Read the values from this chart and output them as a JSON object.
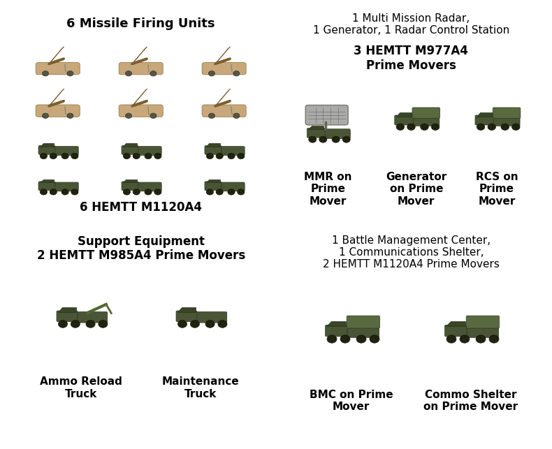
{
  "background_color": "#ffffff",
  "border_color": "#333333",
  "fig_width": 7.9,
  "fig_height": 6.43,
  "dpi": 100,
  "quadrants": [
    {
      "id": "top_left",
      "title": "6 Missile Firing Units",
      "title_bold": true,
      "title_fontsize": 13,
      "subtitle": "6 HEMTT M1120A4",
      "subtitle_fontsize": 12,
      "subtitle_bold": true
    },
    {
      "id": "top_right",
      "title": "1 Multi Mission Radar,\n1 Generator, 1 Radar Control Station",
      "title_bold": false,
      "title_fontsize": 11,
      "subtitle": "3 HEMTT M977A4\nPrime Movers",
      "subtitle_fontsize": 12,
      "subtitle_bold": true,
      "item_labels": [
        "MMR on\nPrime\nMover",
        "Generator\non Prime\nMover",
        "RCS on\nPrime\nMover"
      ],
      "item_fontsize": 11
    },
    {
      "id": "bottom_left",
      "title": "Support Equipment\n2 HEMTT M985A4 Prime Movers",
      "title_bold": true,
      "title_fontsize": 12,
      "item_labels": [
        "Ammo Reload\nTruck",
        "Maintenance\nTruck"
      ],
      "item_fontsize": 11
    },
    {
      "id": "bottom_right",
      "title": "1 Battle Management Center,\n1 Communications Shelter,\n2 HEMTT M1120A4 Prime Movers",
      "title_bold": false,
      "title_fontsize": 11,
      "item_labels": [
        "BMC on Prime\nMover",
        "Commo Shelter\non Prime Mover"
      ],
      "item_fontsize": 11
    }
  ]
}
